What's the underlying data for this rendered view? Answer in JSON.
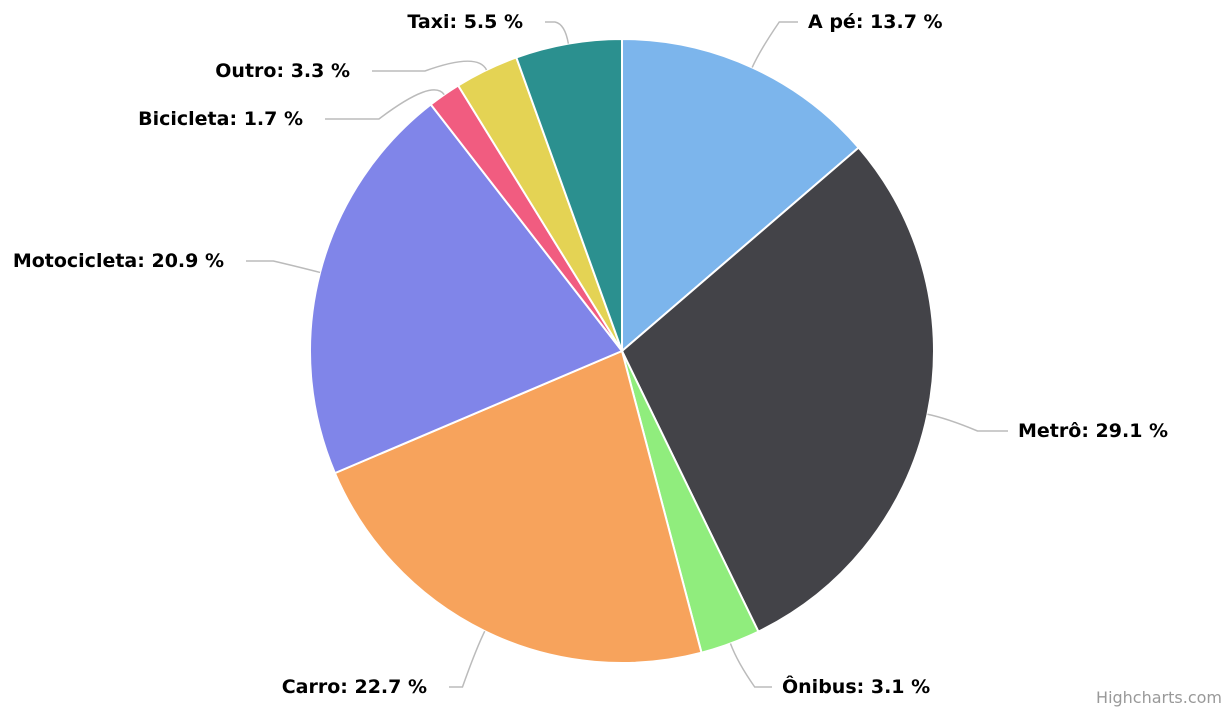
{
  "chart_data": {
    "type": "pie",
    "categories": [
      "A pé",
      "Metrô",
      "Ônibus",
      "Carro",
      "Motocicleta",
      "Bicicleta",
      "Outro",
      "Taxi"
    ],
    "values": [
      13.7,
      29.1,
      3.1,
      22.7,
      20.9,
      1.7,
      3.3,
      5.5
    ],
    "value_labels": [
      "13.7 %",
      "29.1 %",
      "3.1 %",
      "22.7 %",
      "20.9 %",
      "1.7 %",
      "3.3 %",
      "5.5 %"
    ],
    "label_separator": ": ",
    "colors": [
      "#7cb5ec",
      "#434348",
      "#90ed7d",
      "#f7a35c",
      "#8085e9",
      "#f15c80",
      "#e4d354",
      "#2b908f"
    ],
    "credits": "Highcharts.com"
  }
}
